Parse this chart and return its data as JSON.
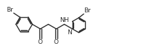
{
  "background_color": "#ffffff",
  "line_color": "#2a2a2a",
  "text_color": "#2a2a2a",
  "line_width": 1.0,
  "font_size": 6.5,
  "figsize": [
    2.27,
    0.73
  ],
  "dpi": 100,
  "xlim": [
    0.0,
    2.27
  ],
  "ylim": [
    0.0,
    0.73
  ]
}
